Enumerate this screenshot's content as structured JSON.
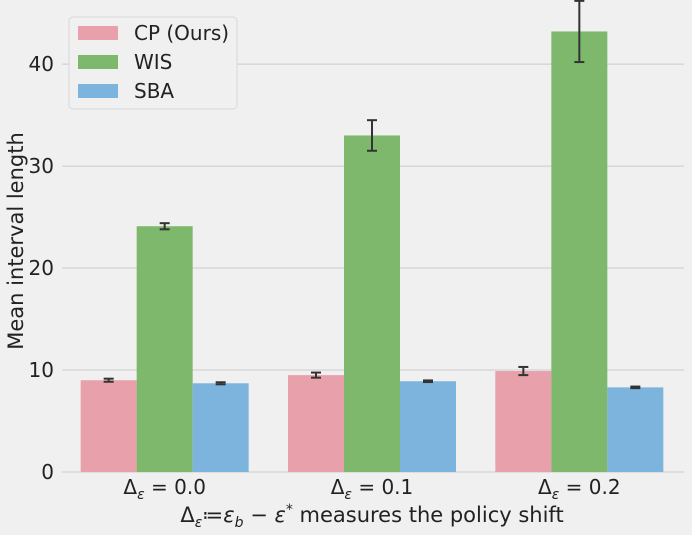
{
  "chart_data": {
    "type": "bar",
    "categories": [
      "Δ_ε = 0.0",
      "Δ_ε = 0.1",
      "Δ_ε = 0.2"
    ],
    "series": [
      {
        "name": "CP (Ours)",
        "color": "#e8a0aa",
        "values": [
          9.0,
          9.5,
          9.9
        ],
        "err": [
          0.15,
          0.25,
          0.4
        ]
      },
      {
        "name": "WIS",
        "color": "#7eb86c",
        "values": [
          24.1,
          33.0,
          43.2
        ],
        "err": [
          0.3,
          1.5,
          3.0
        ]
      },
      {
        "name": "SBA",
        "color": "#7db4de",
        "values": [
          8.7,
          8.9,
          8.3
        ],
        "err": [
          0.1,
          0.08,
          0.08
        ]
      }
    ],
    "xlabel": "Δ_ε≔ε_b − ε* measures the policy shift",
    "ylabel": "Mean interval length",
    "ylim": [
      0,
      45.5
    ],
    "yticks": [
      0,
      10,
      20,
      30,
      40
    ],
    "grid": true,
    "legend_position": "top-left"
  }
}
